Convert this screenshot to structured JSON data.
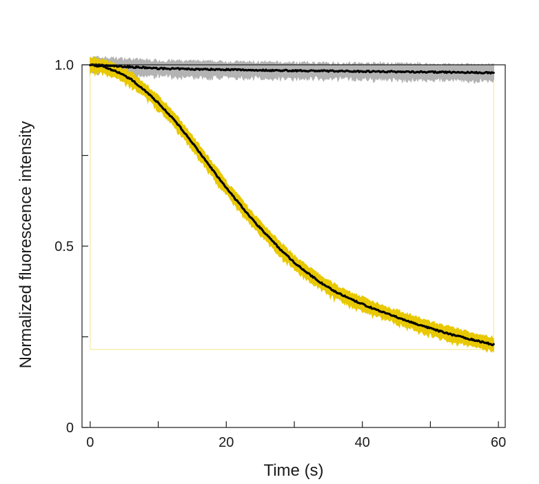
{
  "chart_data": {
    "type": "line",
    "title": "",
    "xlabel": "Time (s)",
    "ylabel": "Normalized fluorescence intensity",
    "xlim": [
      -1.2,
      61.0
    ],
    "ylim": [
      0,
      1.0
    ],
    "x_ticks": [
      0,
      10,
      20,
      30,
      40,
      50,
      60
    ],
    "x_tick_labels": [
      "0",
      "",
      "20",
      "",
      "40",
      "",
      "60"
    ],
    "y_ticks": [
      0,
      0.25,
      0.5,
      0.75,
      1.0
    ],
    "y_tick_labels": [
      "0",
      "",
      "0.5",
      "",
      "1.0"
    ],
    "grid": false,
    "legend": "none",
    "series": [
      {
        "color": "#000000",
        "band_color": "#b3b3b3",
        "band_halfwidth": 0.02,
        "x": [
          0,
          5,
          10,
          15,
          20,
          25,
          30,
          35,
          40,
          45,
          50,
          55,
          59.3
        ],
        "values": [
          1.0,
          0.995,
          0.99,
          0.988,
          0.987,
          0.985,
          0.984,
          0.983,
          0.982,
          0.981,
          0.98,
          0.979,
          0.978
        ]
      },
      {
        "color": "#000000",
        "band_color": "#e8c800",
        "band_halfwidth": 0.018,
        "x": [
          0,
          2,
          4,
          6,
          8,
          10,
          12,
          14,
          16,
          18,
          20,
          22,
          24,
          26,
          28,
          30,
          32,
          34,
          36,
          38,
          40,
          42,
          44,
          46,
          48,
          50,
          52,
          54,
          56,
          58,
          59.3
        ],
        "values": [
          1.0,
          0.995,
          0.98,
          0.96,
          0.93,
          0.895,
          0.855,
          0.81,
          0.76,
          0.71,
          0.66,
          0.615,
          0.57,
          0.53,
          0.49,
          0.455,
          0.425,
          0.398,
          0.375,
          0.356,
          0.34,
          0.325,
          0.311,
          0.298,
          0.285,
          0.273,
          0.262,
          0.252,
          0.243,
          0.234,
          0.228
        ]
      }
    ],
    "box": {
      "x_start": 0,
      "x_end": 59.3,
      "y_low": 0.215,
      "y_high": 1.0,
      "color": "#f3e48a"
    }
  }
}
